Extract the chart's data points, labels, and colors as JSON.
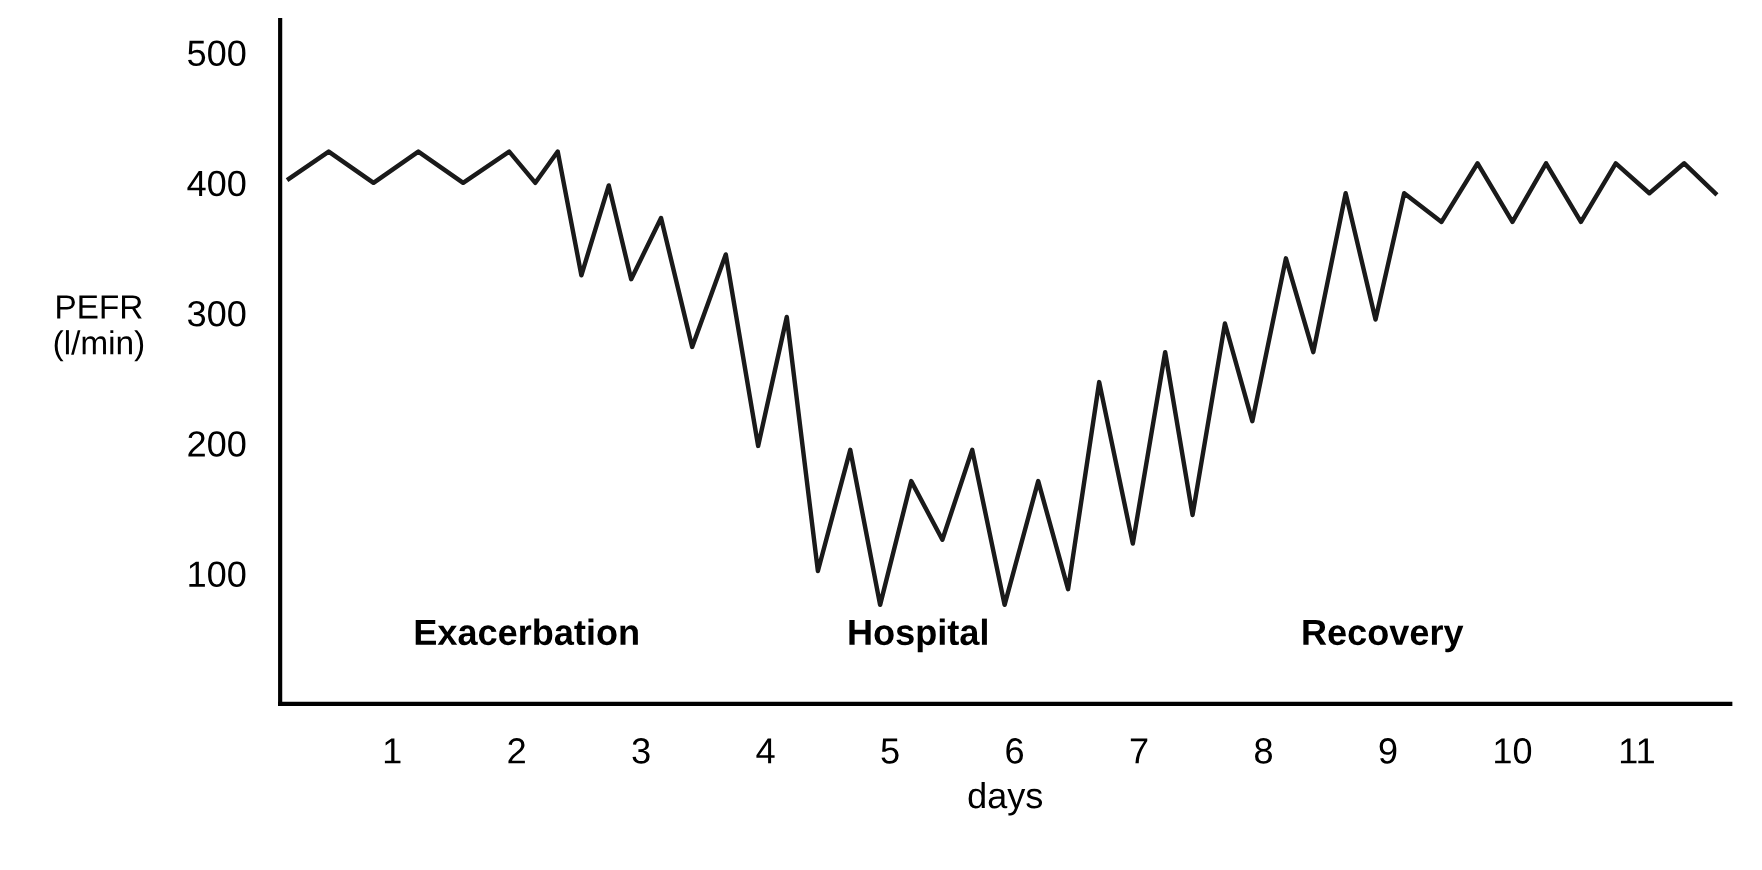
{
  "chart_data": {
    "type": "line",
    "xlabel": "days",
    "ylabel": "PEFR\n(l/min)",
    "x": [
      0.17,
      0.49,
      0.85,
      1.21,
      1.57,
      1.94,
      2.15,
      2.33,
      2.52,
      2.74,
      2.92,
      3.16,
      3.41,
      3.68,
      3.94,
      4.17,
      4.42,
      4.68,
      4.92,
      5.17,
      5.42,
      5.66,
      5.92,
      6.19,
      6.43,
      6.68,
      6.95,
      7.21,
      7.43,
      7.69,
      7.91,
      8.18,
      8.4,
      8.66,
      8.9,
      9.13,
      9.43,
      9.72,
      10.0,
      10.27,
      10.55,
      10.83,
      11.1,
      11.38,
      11.63
    ],
    "series": [
      {
        "color": "#1a1a1a",
        "values": [
          403,
          424,
          400,
          424,
          400,
          424,
          400,
          424,
          329,
          398,
          326,
          373,
          274,
          345,
          198,
          297,
          102,
          195,
          76,
          171,
          126,
          195,
          76,
          171,
          88,
          247,
          123,
          270,
          145,
          292,
          217,
          342,
          270,
          392,
          295,
          392,
          370,
          415,
          370,
          415,
          370,
          415,
          392,
          415,
          392
        ]
      }
    ],
    "xlim": [
      0.1,
      11.75
    ],
    "ylim": [
      0,
      525
    ],
    "xticks": [
      1,
      2,
      3,
      4,
      5,
      6,
      7,
      8,
      9,
      10,
      11
    ],
    "yticks": [
      100,
      200,
      300,
      400,
      500
    ],
    "grid": false,
    "legend": false,
    "marker": "none",
    "line_style": "solid",
    "annotations": [
      "Exacerbation",
      "Hospital",
      "Recovery"
    ]
  }
}
